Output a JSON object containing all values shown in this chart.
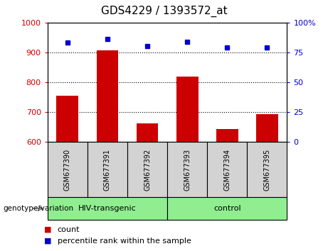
{
  "title": "GDS4229 / 1393572_at",
  "samples": [
    "GSM677390",
    "GSM677391",
    "GSM677392",
    "GSM677393",
    "GSM677394",
    "GSM677395"
  ],
  "counts": [
    755,
    908,
    663,
    820,
    643,
    693
  ],
  "percentiles": [
    83,
    86,
    80,
    84,
    79,
    79
  ],
  "ylim_left": [
    600,
    1000
  ],
  "ylim_right": [
    0,
    100
  ],
  "yticks_left": [
    600,
    700,
    800,
    900,
    1000
  ],
  "yticks_right": [
    0,
    25,
    50,
    75,
    100
  ],
  "ytick_labels_right": [
    "0",
    "25",
    "50",
    "75",
    "100%"
  ],
  "groups": [
    {
      "label": "HIV-transgenic",
      "indices": [
        0,
        1,
        2
      ]
    },
    {
      "label": "control",
      "indices": [
        3,
        4,
        5
      ]
    }
  ],
  "group_label_prefix": "genotype/variation",
  "bar_color": "#cc0000",
  "dot_color": "#0000cc",
  "bar_width": 0.55,
  "background_sample_box": "#d3d3d3",
  "background_group": "#90ee90",
  "legend_count_label": "count",
  "legend_pct_label": "percentile rank within the sample",
  "title_fontsize": 11,
  "tick_fontsize": 8,
  "sample_fontsize": 7,
  "group_fontsize": 8,
  "legend_fontsize": 8
}
